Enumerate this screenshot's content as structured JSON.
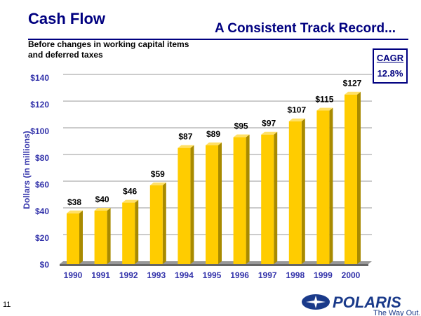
{
  "header": {
    "title": "Cash Flow",
    "subtitle": "A Consistent Track Record...",
    "note": "Before changes in working capital items and deferred taxes"
  },
  "cagr": {
    "label": "CAGR",
    "value": "12.8%"
  },
  "footer": {
    "page": "11",
    "logo_text": "POLARIS",
    "tagline": "The Way Out."
  },
  "chart_data": {
    "type": "bar",
    "title": "Cash Flow",
    "xlabel": "",
    "ylabel": "Dollars (in millions)",
    "ylim": [
      0,
      140
    ],
    "yticks": [
      0,
      20,
      40,
      60,
      80,
      100,
      120,
      140
    ],
    "ytick_labels": [
      "$0",
      "$20",
      "$40",
      "$60",
      "$80",
      "$100",
      "$120",
      "$140"
    ],
    "categories": [
      "1990",
      "1991",
      "1992",
      "1993",
      "1994",
      "1995",
      "1996",
      "1997",
      "1998",
      "1999",
      "2000"
    ],
    "values": [
      38,
      40,
      46,
      59,
      87,
      89,
      95,
      97,
      107,
      115,
      127
    ],
    "data_labels": [
      "$38",
      "$40",
      "$46",
      "$59",
      "$87",
      "$89",
      "$95",
      "$97",
      "$107",
      "$115",
      "$127"
    ],
    "grid": true,
    "colors": {
      "bar": "#FFCC00",
      "bar_side": "#A88A00",
      "bar_top": "#FFE066",
      "axis_text": "#3333aa"
    }
  }
}
